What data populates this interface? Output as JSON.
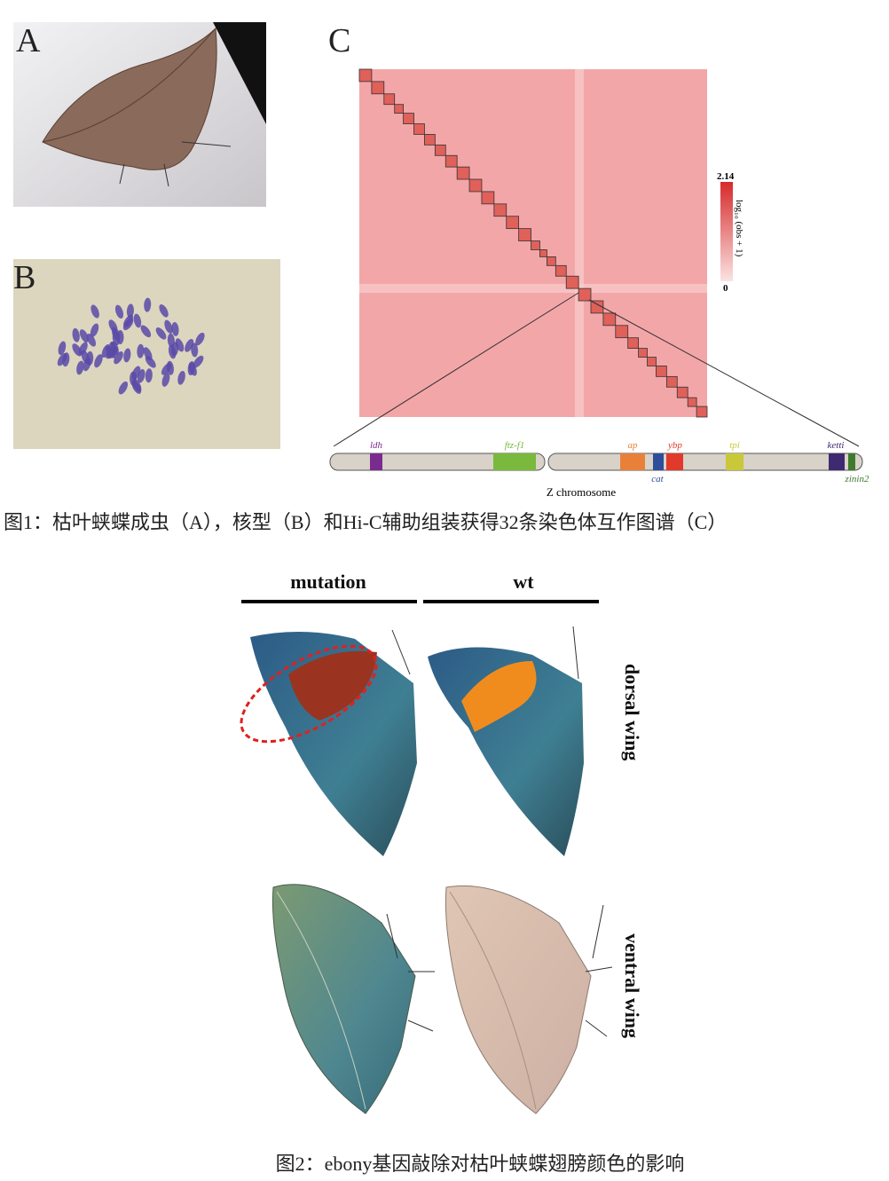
{
  "figure1": {
    "panels": {
      "a": "A",
      "b": "B",
      "c": "C"
    },
    "colorbar": {
      "max": "2.14",
      "min": "0",
      "label": "log₁₀ (obs + 1)"
    },
    "genes_top": [
      "ldh",
      "ftz-f1",
      "ap",
      "ybp",
      "tpi",
      "ketti"
    ],
    "genes_bottom": [
      "cat",
      "zinin2"
    ],
    "chromosome": "Z chromosome",
    "caption": "图1：枯叶蛱蝶成虫（A），核型（B）和Hi-C辅助组装获得32条染色体互作图谱（C）"
  },
  "figure2": {
    "columns": [
      "mutation",
      "wt"
    ],
    "rows": [
      "dorsal wing",
      "ventral wing"
    ],
    "caption": "图2：ebony基因敲除对枯叶蛱蝶翅膀颜色的影响"
  }
}
